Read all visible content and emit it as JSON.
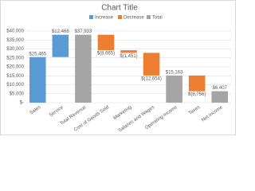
{
  "chart_data": {
    "type": "waterfall",
    "title": "Chart Title",
    "categories": [
      "Sales",
      "Service",
      "Total Revenue",
      "Cost of Goods Sold",
      "Marketing",
      "Salaries and Wages",
      "Operating Income",
      "Taxes",
      "Net Income"
    ],
    "series": [
      {
        "name": "Increase",
        "color": "#5b9bd5",
        "values": [
          25465,
          12468,
          null,
          null,
          null,
          null,
          null,
          null,
          null
        ],
        "value_labels": [
          "$25,465",
          "$12,468",
          null,
          null,
          null,
          null,
          null,
          null,
          null
        ]
      },
      {
        "name": "Decrease",
        "color": "#ed7d31",
        "values": [
          null,
          null,
          null,
          -8665,
          -1451,
          -12654,
          null,
          -8756,
          null
        ],
        "value_labels": [
          null,
          null,
          null,
          "$(8,665)",
          "$(1,451)",
          "$(12,654)",
          null,
          "$(8,756)",
          null
        ]
      },
      {
        "name": "Total",
        "color": "#a5a5a5",
        "values": [
          null,
          null,
          37933,
          null,
          null,
          null,
          15163,
          null,
          6407
        ],
        "value_labels": [
          null,
          null,
          "$37,933",
          null,
          null,
          null,
          "$15,163",
          null,
          "$6,407"
        ]
      }
    ],
    "ylim": [
      0,
      40000
    ],
    "yticks": [
      {
        "value": 0,
        "label": "$-"
      },
      {
        "value": 5000,
        "label": "$5,000"
      },
      {
        "value": 10000,
        "label": "$10,000"
      },
      {
        "value": 15000,
        "label": "$15,000"
      },
      {
        "value": 20000,
        "label": "$20,000"
      },
      {
        "value": 25000,
        "label": "$25,000"
      },
      {
        "value": 30000,
        "label": "$30,000"
      },
      {
        "value": 35000,
        "label": "$35,000"
      },
      {
        "value": 40000,
        "label": "$40,000"
      }
    ],
    "grid": true
  }
}
